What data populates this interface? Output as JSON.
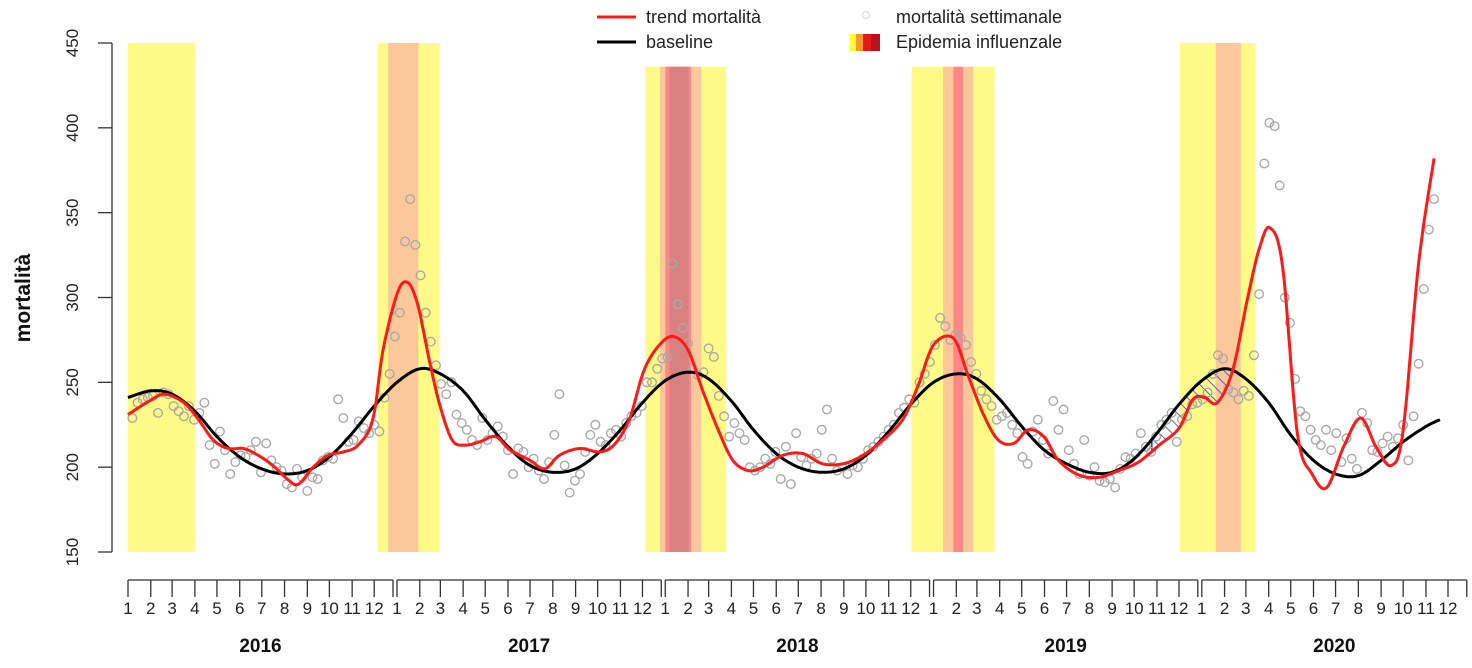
{
  "chart_data": {
    "type": "line",
    "title": "",
    "ylabel": "mortalità",
    "xlabel": "",
    "ylim": [
      150,
      450
    ],
    "y_ticks": [
      150,
      200,
      250,
      300,
      350,
      400,
      450
    ],
    "x_month_labels": [
      "1",
      "2",
      "3",
      "4",
      "5",
      "6",
      "7",
      "8",
      "9",
      "10",
      "11",
      "12"
    ],
    "years": [
      "2016",
      "2017",
      "2018",
      "2019",
      "2020"
    ],
    "grid": false,
    "legend": {
      "placement": "top",
      "entries": [
        {
          "label": "trend mortalità",
          "kind": "line",
          "color": "#ff1a1a"
        },
        {
          "label": "mortalità settimanale",
          "kind": "point",
          "color": "#dddddd"
        },
        {
          "label": "baseline",
          "kind": "line",
          "color": "#000000"
        },
        {
          "label": "Epidemia influenzale",
          "kind": "swatch",
          "colors": [
            "#ffff33",
            "#f79a2a",
            "#e31a1c",
            "#b30000"
          ]
        }
      ]
    },
    "colors": {
      "trend": "#ff1a1a",
      "baseline": "#000000",
      "points": "#aaaaaa",
      "excess_hatch": "#1f3fff",
      "band_levels": {
        "1": "#fffb86",
        "2": "#fdc899",
        "3": "#ff8785",
        "4": "#d98080"
      }
    },
    "epidemic_bands": [
      {
        "start": "2016-01-01",
        "end": "2016-04-01",
        "level": 1,
        "top": 450
      },
      {
        "start": "2016-12-06",
        "end": "2017-02-28",
        "level": 1,
        "top": 450
      },
      {
        "start": "2016-12-20",
        "end": "2017-01-30",
        "level": 2,
        "top": 450
      },
      {
        "start": "2017-12-05",
        "end": "2018-03-25",
        "level": 1,
        "top": 436
      },
      {
        "start": "2017-12-25",
        "end": "2018-02-19",
        "level": 2,
        "top": 436
      },
      {
        "start": "2018-01-01",
        "end": "2018-02-05",
        "level": 3,
        "top": 436
      },
      {
        "start": "2018-01-07",
        "end": "2018-02-02",
        "level": 4,
        "top": 436
      },
      {
        "start": "2018-12-02",
        "end": "2019-03-25",
        "level": 1,
        "top": 436
      },
      {
        "start": "2019-01-14",
        "end": "2019-02-24",
        "level": 2,
        "top": 436
      },
      {
        "start": "2019-01-28",
        "end": "2019-02-10",
        "level": 3,
        "top": 436
      },
      {
        "start": "2019-12-02",
        "end": "2020-03-14",
        "level": 1,
        "top": 450
      },
      {
        "start": "2020-01-20",
        "end": "2020-02-23",
        "level": 2,
        "top": 450
      }
    ],
    "excess_hatched_period": {
      "start": "2019-10-25",
      "end": "2020-02-14"
    },
    "trend": [
      [
        "2016-01-01",
        231
      ],
      [
        "2016-01-30",
        239
      ],
      [
        "2016-02-20",
        243
      ],
      [
        "2016-03-17",
        238
      ],
      [
        "2016-04-06",
        228
      ],
      [
        "2016-04-26",
        216
      ],
      [
        "2016-05-16",
        211
      ],
      [
        "2016-06-06",
        211
      ],
      [
        "2016-06-26",
        207
      ],
      [
        "2016-07-16",
        201
      ],
      [
        "2016-08-06",
        192.5
      ],
      [
        "2016-08-20",
        190
      ],
      [
        "2016-09-09",
        200
      ],
      [
        "2016-09-29",
        207
      ],
      [
        "2016-10-20",
        209
      ],
      [
        "2016-11-09",
        213
      ],
      [
        "2016-11-29",
        228
      ],
      [
        "2016-12-13",
        269
      ],
      [
        "2017-01-01",
        302
      ],
      [
        "2017-01-15",
        309
      ],
      [
        "2017-01-29",
        296
      ],
      [
        "2017-02-14",
        263
      ],
      [
        "2017-02-28",
        237
      ],
      [
        "2017-03-17",
        216
      ],
      [
        "2017-04-04",
        213
      ],
      [
        "2017-04-24",
        215
      ],
      [
        "2017-05-15",
        218
      ],
      [
        "2017-06-04",
        210
      ],
      [
        "2017-07-01",
        204
      ],
      [
        "2017-07-21",
        199
      ],
      [
        "2017-08-10",
        207
      ],
      [
        "2017-09-06",
        211
      ],
      [
        "2017-10-03",
        209
      ],
      [
        "2017-10-23",
        213
      ],
      [
        "2017-11-13",
        228
      ],
      [
        "2017-12-03",
        257
      ],
      [
        "2017-12-24",
        272
      ],
      [
        "2018-01-12",
        277
      ],
      [
        "2018-02-01",
        269
      ],
      [
        "2018-02-21",
        245
      ],
      [
        "2018-03-14",
        222
      ],
      [
        "2018-04-03",
        204
      ],
      [
        "2018-04-24",
        198
      ],
      [
        "2018-05-14",
        200
      ],
      [
        "2018-06-10",
        207
      ],
      [
        "2018-07-07",
        208
      ],
      [
        "2018-08-03",
        202
      ],
      [
        "2018-08-31",
        202
      ],
      [
        "2018-09-27",
        207
      ],
      [
        "2018-10-24",
        216
      ],
      [
        "2018-11-20",
        228
      ],
      [
        "2018-12-11",
        248
      ],
      [
        "2019-01-01",
        272
      ],
      [
        "2019-01-28",
        276
      ],
      [
        "2019-02-17",
        254
      ],
      [
        "2019-03-10",
        231
      ],
      [
        "2019-03-30",
        216
      ],
      [
        "2019-04-20",
        214
      ],
      [
        "2019-05-10",
        222
      ],
      [
        "2019-05-31",
        218
      ],
      [
        "2019-06-20",
        204
      ],
      [
        "2019-07-17",
        195.5
      ],
      [
        "2019-08-14",
        194
      ],
      [
        "2019-09-10",
        198
      ],
      [
        "2019-10-07",
        203
      ],
      [
        "2019-11-04",
        213
      ],
      [
        "2019-12-01",
        223
      ],
      [
        "2019-12-20",
        240
      ],
      [
        "2020-01-05",
        241
      ],
      [
        "2020-01-22",
        238
      ],
      [
        "2020-02-12",
        257
      ],
      [
        "2020-03-03",
        299
      ],
      [
        "2020-03-20",
        330
      ],
      [
        "2020-04-03",
        341
      ],
      [
        "2020-04-20",
        318
      ],
      [
        "2020-05-10",
        220
      ],
      [
        "2020-05-30",
        196
      ],
      [
        "2020-06-19",
        188
      ],
      [
        "2020-07-12",
        212
      ],
      [
        "2020-08-04",
        229
      ],
      [
        "2020-08-25",
        212
      ],
      [
        "2020-09-15",
        201
      ],
      [
        "2020-10-01",
        222
      ],
      [
        "2020-10-22",
        320
      ],
      [
        "2020-11-12",
        382
      ]
    ],
    "baseline": [
      [
        "2016-01-01",
        241
      ],
      [
        "2016-02-01",
        245
      ],
      [
        "2016-03-01",
        243
      ],
      [
        "2016-04-01",
        233
      ],
      [
        "2016-05-01",
        218
      ],
      [
        "2016-06-01",
        206
      ],
      [
        "2016-07-01",
        199
      ],
      [
        "2016-08-01",
        196
      ],
      [
        "2016-09-01",
        198
      ],
      [
        "2016-10-01",
        206
      ],
      [
        "2016-11-01",
        220
      ],
      [
        "2016-12-01",
        236
      ],
      [
        "2017-01-01",
        250
      ],
      [
        "2017-02-01",
        258
      ],
      [
        "2017-03-01",
        255
      ],
      [
        "2017-04-01",
        245
      ],
      [
        "2017-05-01",
        228
      ],
      [
        "2017-06-01",
        212
      ],
      [
        "2017-07-01",
        201
      ],
      [
        "2017-08-01",
        197
      ],
      [
        "2017-09-01",
        199
      ],
      [
        "2017-10-01",
        208
      ],
      [
        "2017-11-01",
        222
      ],
      [
        "2017-12-01",
        238
      ],
      [
        "2018-01-01",
        251
      ],
      [
        "2018-02-01",
        256
      ],
      [
        "2018-03-01",
        252
      ],
      [
        "2018-04-01",
        239
      ],
      [
        "2018-05-01",
        222
      ],
      [
        "2018-06-01",
        208
      ],
      [
        "2018-07-01",
        200
      ],
      [
        "2018-08-01",
        197
      ],
      [
        "2018-09-01",
        199
      ],
      [
        "2018-10-01",
        207
      ],
      [
        "2018-11-01",
        221
      ],
      [
        "2018-12-01",
        237
      ],
      [
        "2019-01-01",
        250
      ],
      [
        "2019-02-01",
        255
      ],
      [
        "2019-03-01",
        252
      ],
      [
        "2019-04-01",
        240
      ],
      [
        "2019-05-01",
        224
      ],
      [
        "2019-06-01",
        210
      ],
      [
        "2019-07-01",
        202
      ],
      [
        "2019-08-01",
        197
      ],
      [
        "2019-09-01",
        197
      ],
      [
        "2019-10-01",
        205
      ],
      [
        "2019-11-01",
        220
      ],
      [
        "2019-12-01",
        237
      ],
      [
        "2020-01-01",
        251
      ],
      [
        "2020-02-01",
        258
      ],
      [
        "2020-03-01",
        252
      ],
      [
        "2020-04-01",
        238
      ],
      [
        "2020-05-01",
        219
      ],
      [
        "2020-06-01",
        204
      ],
      [
        "2020-07-01",
        196
      ],
      [
        "2020-08-01",
        195
      ],
      [
        "2020-09-01",
        204
      ],
      [
        "2020-10-01",
        215
      ],
      [
        "2020-11-01",
        224
      ],
      [
        "2020-11-20",
        228
      ]
    ],
    "weekly_mortality_by_iso_week": {
      "2016": [
        229,
        238,
        240,
        241,
        242,
        232,
        244,
        243,
        236,
        233,
        230,
        236,
        228,
        232,
        238,
        213,
        202,
        221,
        210,
        196,
        203,
        207,
        206,
        210,
        215,
        197,
        214,
        204,
        200,
        198,
        190,
        188,
        199,
        194,
        186,
        194,
        193,
        204,
        206,
        205,
        240,
        229,
        215,
        216,
        227,
        223,
        220,
        225,
        221,
        241,
        255,
        277
      ],
      "2017": [
        291,
        333,
        358,
        331,
        313,
        291,
        274,
        260,
        249,
        243,
        250,
        231,
        226,
        222,
        216,
        213,
        229,
        216,
        220,
        224,
        218,
        210,
        196,
        211,
        209,
        200,
        205,
        198,
        193,
        203,
        219,
        243,
        201,
        185,
        192,
        196,
        209,
        219,
        225,
        215,
        213,
        220,
        222,
        218,
        226,
        230,
        232,
        236,
        250,
        250,
        258,
        264
      ],
      "2018": [
        265,
        320,
        296,
        282,
        273,
        258,
        254,
        256,
        270,
        265,
        242,
        230,
        218,
        226,
        220,
        216,
        200,
        198,
        200,
        205,
        202,
        209,
        193,
        212,
        190,
        220,
        206,
        201,
        205,
        208,
        222,
        234,
        205,
        198,
        200,
        196,
        201,
        200,
        205,
        210,
        212,
        215,
        218,
        222,
        225,
        232,
        235,
        240,
        238,
        250,
        255,
        262
      ],
      "2019": [
        272,
        288,
        283,
        275,
        278,
        276,
        272,
        262,
        255,
        245,
        240,
        236,
        228,
        230,
        232,
        225,
        220,
        206,
        202,
        221,
        228,
        216,
        208,
        239,
        222,
        234,
        210,
        202,
        196,
        216,
        195,
        200,
        192,
        191,
        193,
        188,
        199,
        206,
        205,
        208,
        220,
        212,
        209,
        218,
        225,
        228,
        232,
        215,
        228,
        230,
        237,
        238
      ],
      "2020": [
        240,
        244,
        255,
        266,
        264,
        246,
        244,
        240,
        245,
        242,
        266,
        302,
        379,
        403,
        401,
        366,
        300,
        285,
        252,
        233,
        230,
        222,
        216,
        213,
        222,
        210,
        220,
        203,
        217,
        205,
        199,
        232,
        226,
        210,
        209,
        214,
        218,
        212,
        217,
        225,
        204,
        230,
        261,
        305,
        340,
        358
      ]
    }
  }
}
